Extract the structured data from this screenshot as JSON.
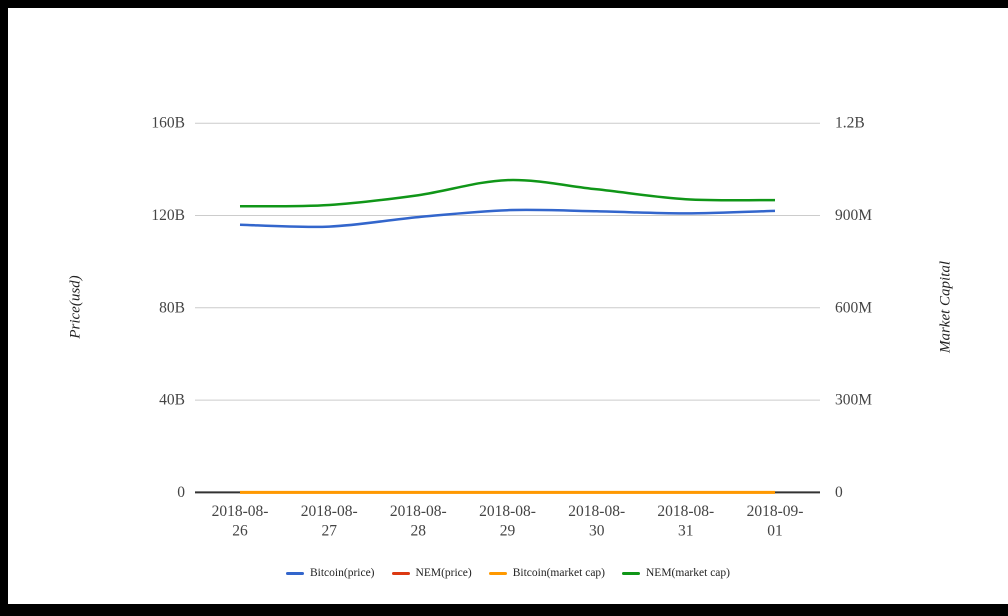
{
  "frame": {
    "color": "#000000",
    "panel_color": "#ffffff"
  },
  "chart_data": {
    "type": "line",
    "smooth": true,
    "grid": "horizontal-only",
    "legend_position": "bottom",
    "categories": [
      "2018-08-26",
      "2018-08-27",
      "2018-08-28",
      "2018-08-29",
      "2018-08-30",
      "2018-08-31",
      "2018-09-01"
    ],
    "series": [
      {
        "name": "Bitcoin(price)",
        "color": "#3366cc",
        "axis": "left",
        "unit": "billions USD",
        "values": [
          116.0,
          115.2,
          119.3,
          122.3,
          121.8,
          120.9,
          122.0
        ]
      },
      {
        "name": "NEM(price)",
        "color": "#dc3912",
        "axis": "left",
        "unit": "billions USD",
        "values": [
          0,
          0,
          0,
          0,
          0,
          0,
          0
        ]
      },
      {
        "name": "Bitcoin(market cap)",
        "color": "#ff9900",
        "axis": "right",
        "unit": "millions USD",
        "values": [
          0,
          0,
          0,
          0,
          0,
          0,
          0
        ]
      },
      {
        "name": "NEM(market cap)",
        "color": "#109618",
        "axis": "right",
        "unit": "millions USD",
        "values": [
          930,
          934,
          966,
          1015,
          985,
          953,
          950
        ]
      }
    ],
    "left_axis": {
      "title": "Price(usd)",
      "tick_labels": [
        "0",
        "40B",
        "80B",
        "120B",
        "160B"
      ],
      "tick_values": [
        0,
        40,
        80,
        120,
        160
      ],
      "ylim": [
        0,
        160
      ],
      "unit": "billions USD"
    },
    "right_axis": {
      "title": "Market Capital",
      "tick_labels": [
        "0",
        "300M",
        "600M",
        "900M",
        "1.2B"
      ],
      "tick_values": [
        0,
        300,
        600,
        900,
        1200
      ],
      "ylim": [
        0,
        1200
      ],
      "unit": "millions USD"
    }
  },
  "style": {
    "gridline_color": "#cccccc",
    "baseline_color": "#333333",
    "tick_text_color": "#444444",
    "title_text_color": "#222222",
    "legend_text_color": "#222222"
  }
}
